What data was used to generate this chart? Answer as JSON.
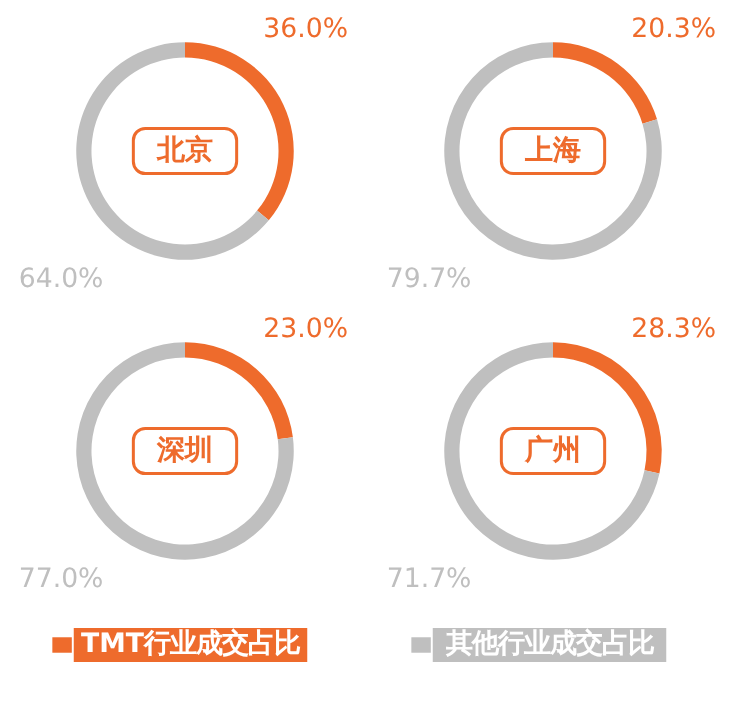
{
  "chart_data": [
    {
      "type": "donut",
      "title": "北京",
      "categories": [
        "TMT行业成交占比",
        "其他行业成交占比"
      ],
      "values": [
        36.0,
        64.0
      ],
      "colors": [
        "#ee6b2c",
        "#bfbfbf"
      ],
      "value_labels": [
        "36.0%",
        "64.0%"
      ],
      "legend": "bottom"
    },
    {
      "type": "donut",
      "title": "上海",
      "categories": [
        null,
        null
      ],
      "values": [
        20.3,
        79.7
      ],
      "colors": [
        "#ee6b2c",
        "#bfbfbf"
      ],
      "value_labels": [
        "20.3%",
        "79.7%"
      ]
    },
    {
      "type": "donut",
      "title": "深圳",
      "categories": [
        null,
        null
      ],
      "values": [
        23.0,
        77.0
      ],
      "colors": [
        "#ee6b2c",
        "#bfbfbf"
      ],
      "value_labels": [
        "23.0%",
        "77.0%"
      ]
    },
    {
      "type": "donut",
      "title": "广州",
      "categories": [
        null,
        null
      ],
      "values": [
        28.3,
        71.7
      ],
      "colors": [
        "#ee6b2c",
        "#bfbfbf"
      ],
      "value_labels": [
        "28.3%",
        "71.7%"
      ]
    }
  ]
}
